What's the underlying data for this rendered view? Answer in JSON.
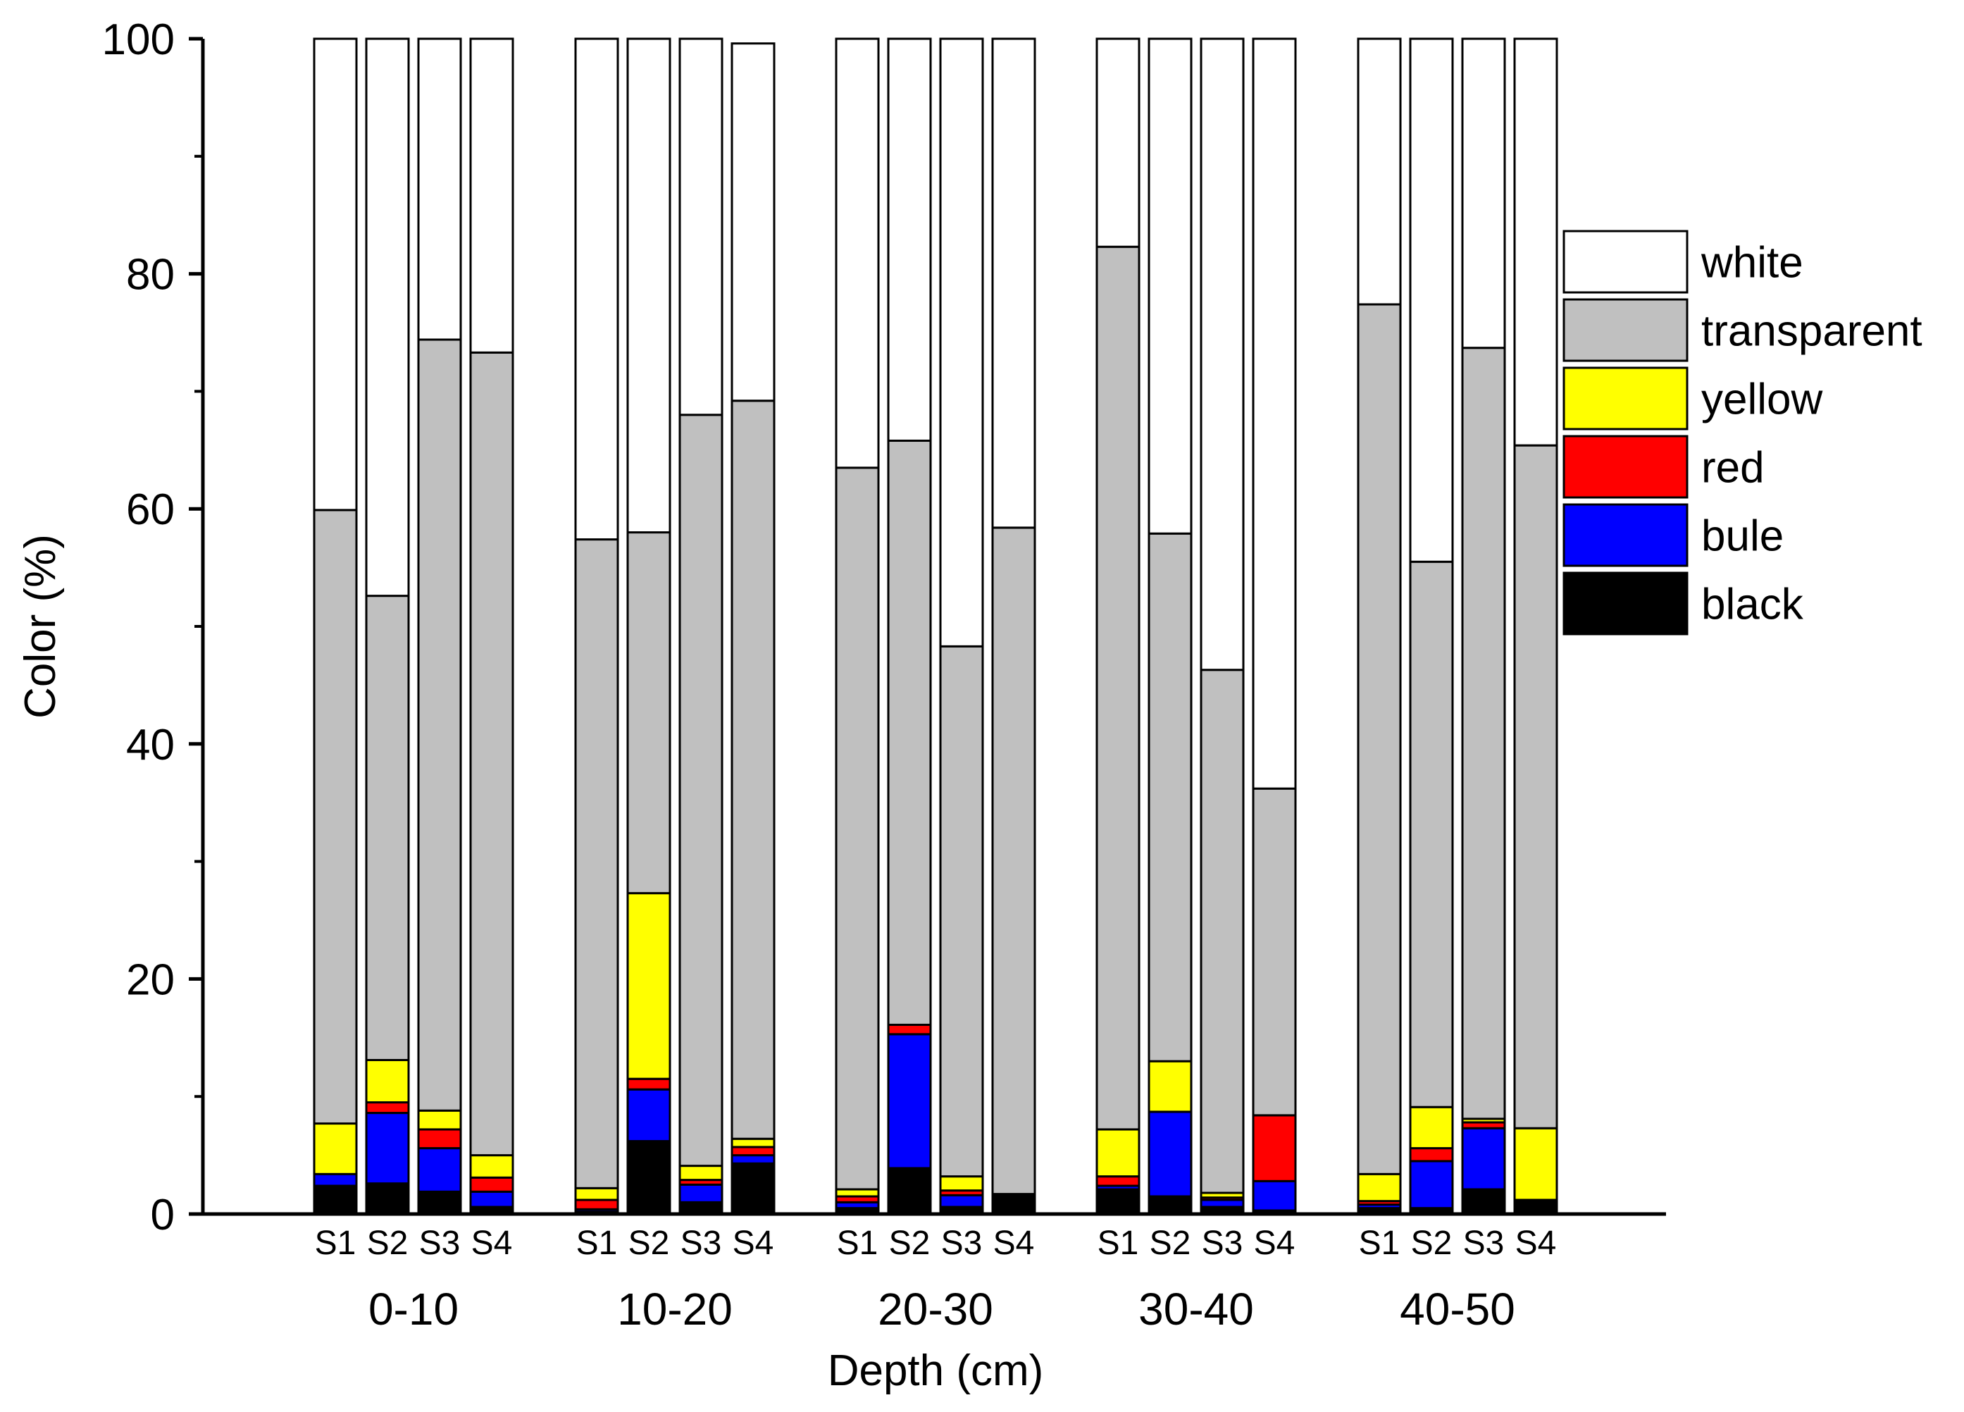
{
  "chart_data": {
    "type": "bar",
    "stacked": true,
    "title": "",
    "xlabel": "Depth (cm)",
    "ylabel": "Color (%)",
    "ylim": [
      0,
      100
    ],
    "yticks": [
      0,
      20,
      40,
      60,
      80,
      100
    ],
    "ytick_labels": [
      "0",
      "20",
      "40",
      "60",
      "80",
      "100"
    ],
    "groups": [
      "0-10",
      "10-20",
      "20-30",
      "30-40",
      "40-50"
    ],
    "samples": [
      "S1",
      "S2",
      "S3",
      "S4"
    ],
    "legend_position": "right",
    "series": [
      {
        "name": "black",
        "color": "#000000",
        "values": [
          [
            2.4,
            2.6,
            1.9,
            0.6
          ],
          [
            0.2,
            6.2,
            1.0,
            4.3
          ],
          [
            0.5,
            3.9,
            0.6,
            1.7
          ],
          [
            2.1,
            1.5,
            0.6,
            0.3
          ]
        ]
      },
      {
        "name": "bule",
        "color": "#0000ff",
        "values": [
          [
            1.0,
            6.0,
            3.7,
            1.3
          ],
          [
            0.2,
            4.4,
            1.5,
            0.7
          ],
          [
            0.5,
            11.4,
            1.0,
            0.0
          ],
          [
            0.3,
            7.2,
            0.6,
            2.5
          ]
        ]
      },
      {
        "name": "red",
        "color": "#ff0000",
        "values": [
          [
            0.0,
            0.9,
            1.6,
            1.2
          ],
          [
            0.8,
            0.9,
            0.4,
            0.7
          ],
          [
            0.5,
            0.8,
            0.4,
            0.0
          ],
          [
            0.8,
            0.0,
            0.2,
            5.6
          ]
        ]
      },
      {
        "name": "yellow",
        "color": "#ffff00",
        "values": [
          [
            4.3,
            3.6,
            1.6,
            1.9
          ],
          [
            1.0,
            15.8,
            1.2,
            0.7
          ],
          [
            0.6,
            0.0,
            1.2,
            0.0
          ],
          [
            4.0,
            4.3,
            0.4,
            0.0
          ]
        ]
      },
      {
        "name": "transparent",
        "color": "#c0c0c0",
        "values": [
          [
            52.2,
            39.5,
            65.6,
            68.3
          ],
          [
            55.2,
            30.7,
            63.9,
            62.8
          ],
          [
            61.4,
            49.7,
            45.1,
            56.7
          ],
          [
            75.1,
            44.9,
            44.5,
            27.8
          ]
        ]
      },
      {
        "name": "white",
        "color": "#ffffff",
        "values": [
          [
            40.1,
            47.4,
            25.6,
            26.7
          ],
          [
            42.6,
            42.0,
            32.0,
            30.4
          ],
          [
            36.5,
            34.2,
            51.7,
            41.6
          ],
          [
            17.7,
            42.1,
            53.7,
            63.8
          ]
        ]
      }
    ],
    "group5": {
      "black": [
        0.5,
        0.5,
        2.1,
        1.2
      ],
      "bule": [
        0.3,
        4.0,
        5.2,
        0.0
      ],
      "red": [
        0.3,
        1.1,
        0.5,
        0.0
      ],
      "yellow": [
        2.3,
        3.5,
        0.3,
        6.1
      ],
      "transparent": [
        74.0,
        46.4,
        65.6,
        58.1
      ],
      "white": [
        22.6,
        44.5,
        26.3,
        34.6
      ]
    }
  }
}
